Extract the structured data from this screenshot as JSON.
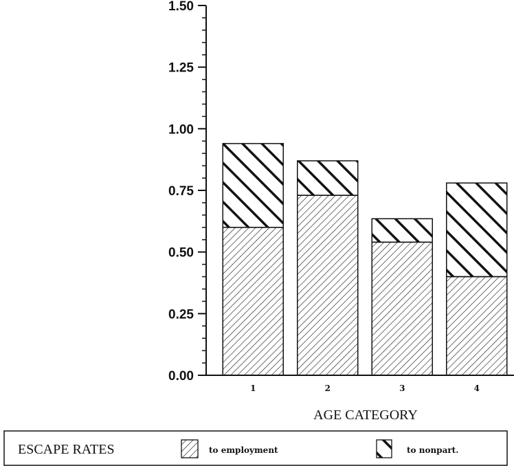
{
  "chart_data": {
    "type": "bar",
    "stacked": true,
    "categories": [
      "1",
      "2",
      "3",
      "4"
    ],
    "series": [
      {
        "name": "to employment",
        "values": [
          0.6,
          0.73,
          0.54,
          0.4
        ],
        "pattern": "fine-diagonal"
      },
      {
        "name": "to nonpart.",
        "values": [
          0.34,
          0.14,
          0.095,
          0.38
        ],
        "pattern": "bold-diagonal"
      }
    ],
    "xlabel": "AGE CATEGORY",
    "ylim": [
      0,
      1.5
    ],
    "yticks": [
      "0.00",
      "0.25",
      "0.50",
      "0.75",
      "1.00",
      "1.25",
      "1.50"
    ],
    "legend": {
      "title": "ESCAPE RATES",
      "placement": "bottom"
    },
    "grid": false,
    "colors": {
      "ink": "#111111",
      "background": "#ffffff"
    }
  }
}
